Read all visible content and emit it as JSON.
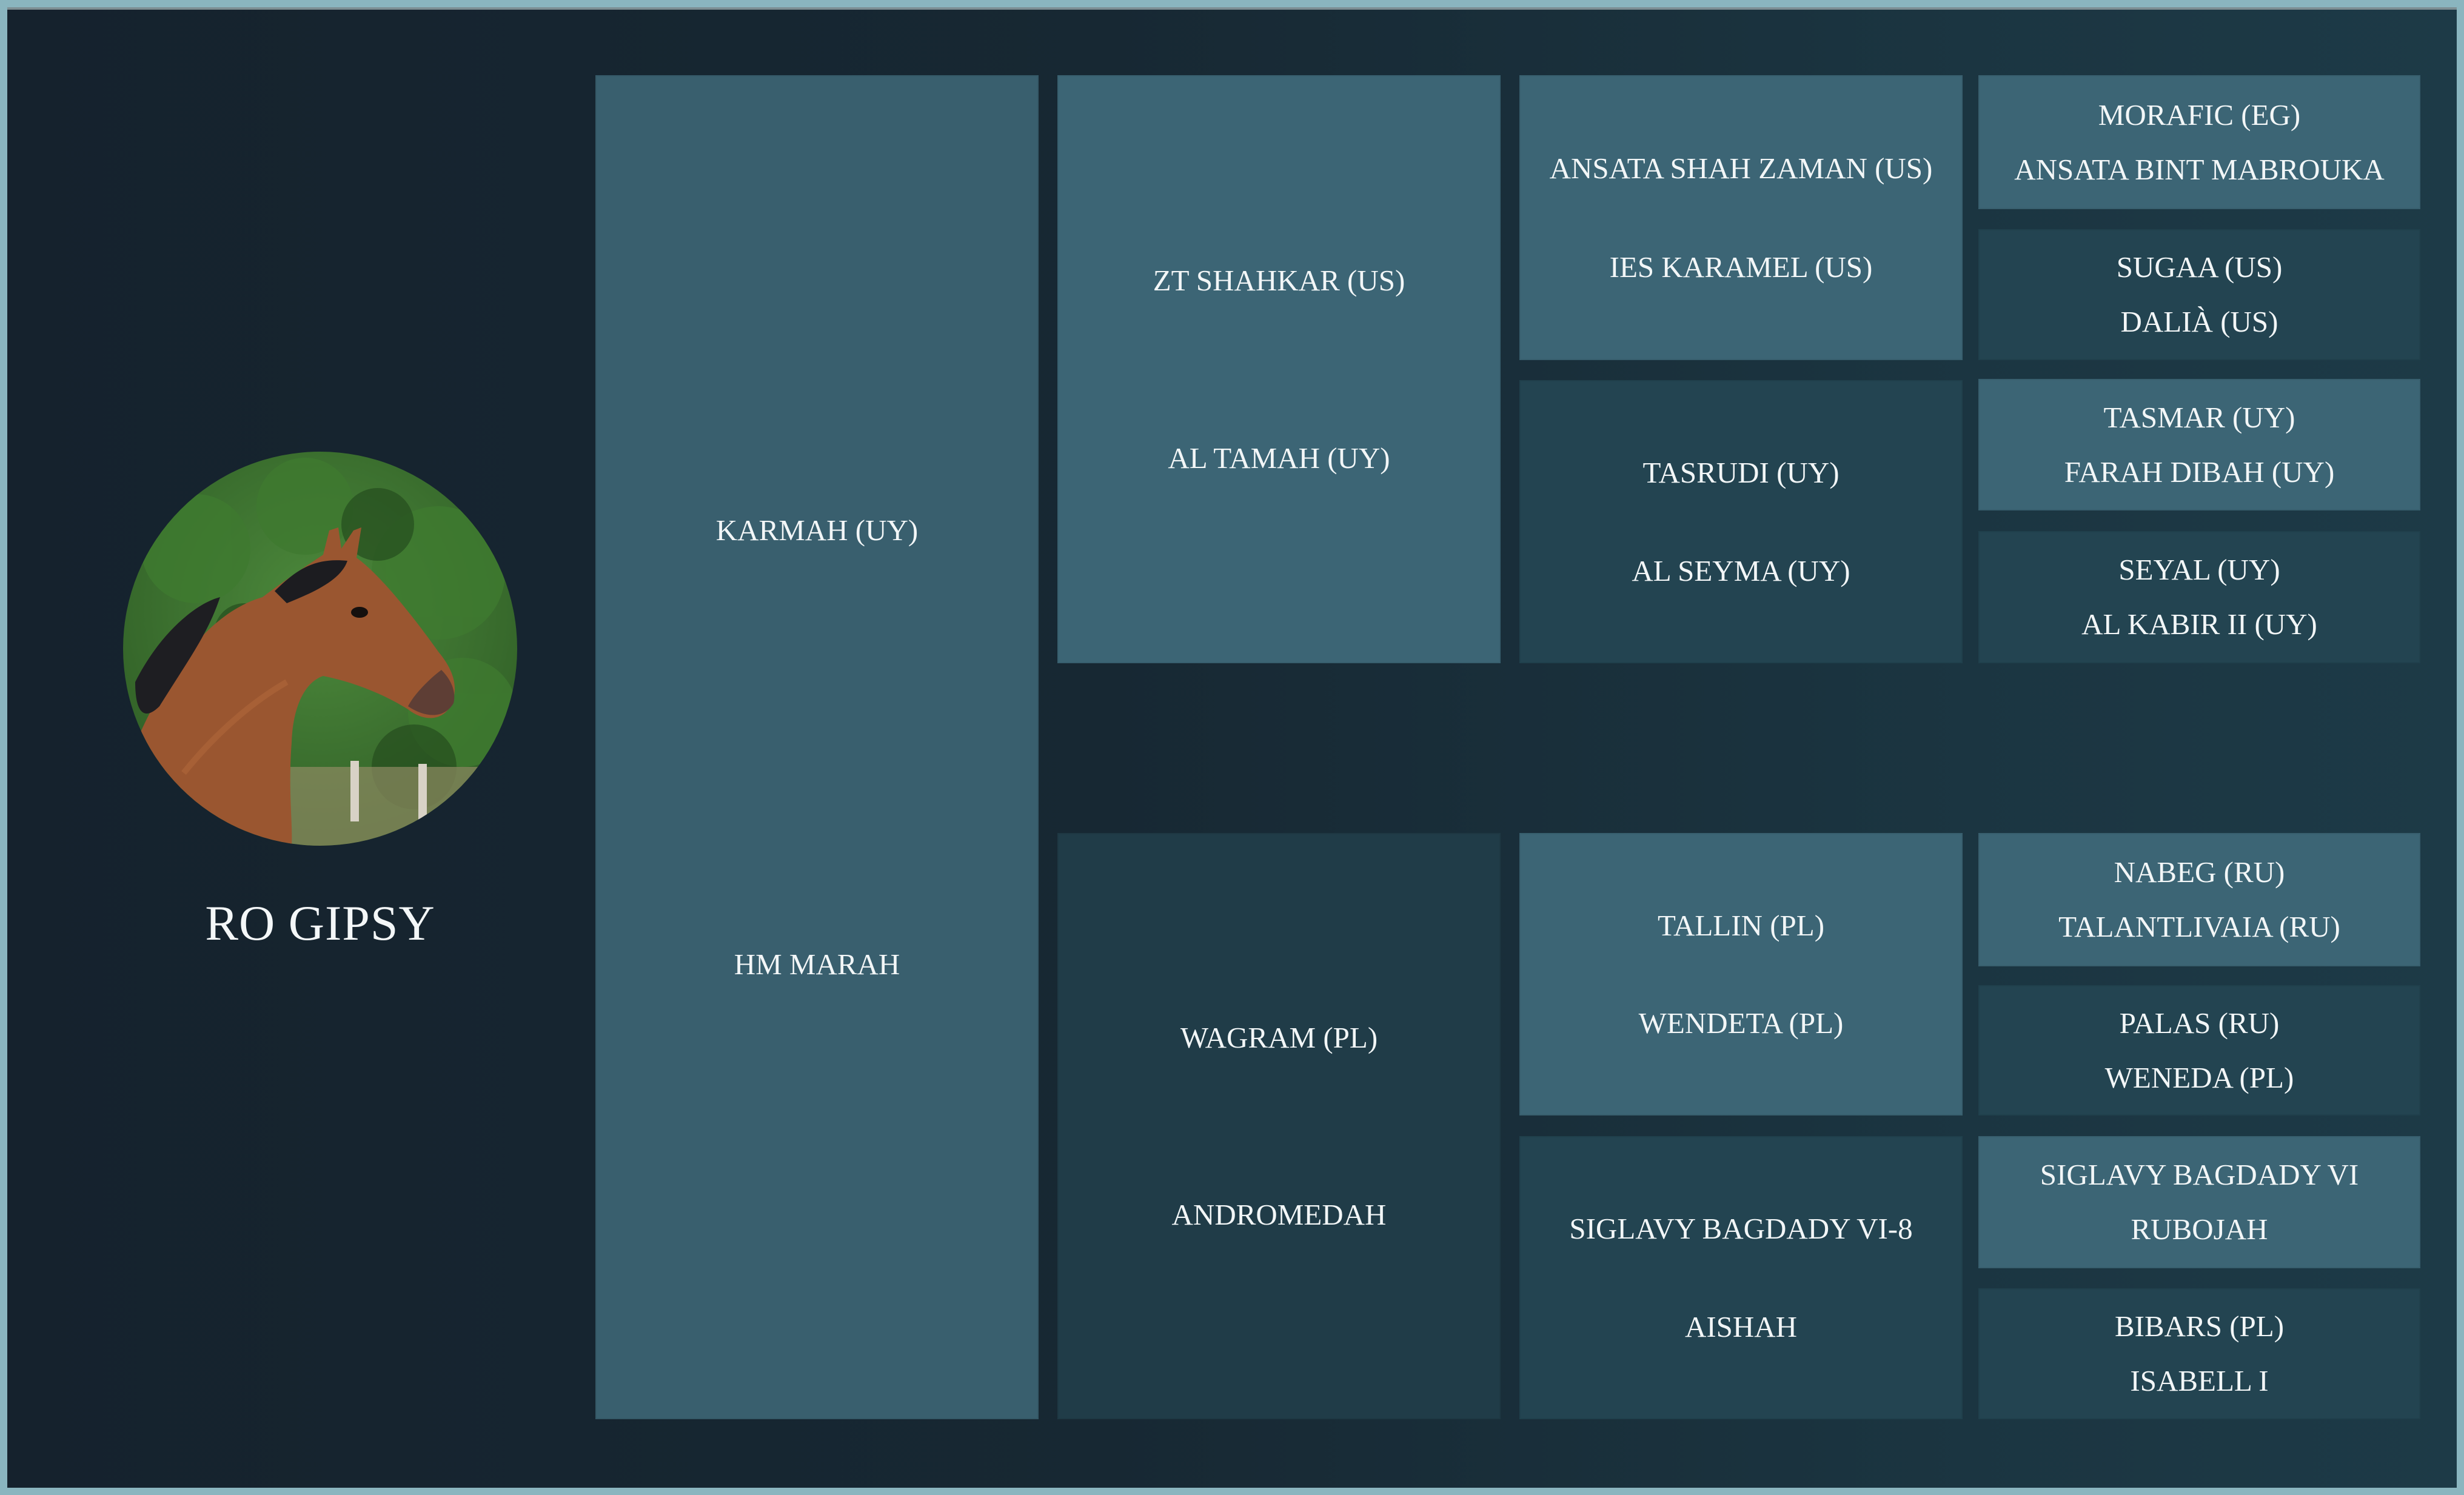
{
  "horse": {
    "name": "RO GIPSY",
    "photo_icon": "horse-portrait-photo"
  },
  "pedigree": {
    "parents": {
      "sire": "KARMAH (UY)",
      "dam": "HM MARAH"
    },
    "grandparents": [
      {
        "sire": "ZT SHAHKAR (US)",
        "dam": "AL TAMAH (UY)"
      },
      {
        "sire": "WAGRAM (PL)",
        "dam": "ANDROMEDAH"
      }
    ],
    "great_grandparents": [
      {
        "sire": "ANSATA SHAH ZAMAN (US)",
        "dam": "IES KARAMEL (US)"
      },
      {
        "sire": "TASRUDI (UY)",
        "dam": "AL SEYMA (UY)"
      },
      {
        "sire": "TALLIN (PL)",
        "dam": "WENDETA (PL)"
      },
      {
        "sire": "SIGLAVY BAGDADY VI-8",
        "dam": "AISHAH"
      }
    ],
    "great_great_grandparents": [
      {
        "sire": "MORAFIC (EG)",
        "dam": "ANSATA BINT MABROUKA"
      },
      {
        "sire": "SUGAA (US)",
        "dam": "DALIÀ (US)"
      },
      {
        "sire": "TASMAR (UY)",
        "dam": "FARAH DIBAH (UY)"
      },
      {
        "sire": "SEYAL (UY)",
        "dam": "AL KABIR II (UY)"
      },
      {
        "sire": "NABEG (RU)",
        "dam": "TALANTLIVAIA (RU)"
      },
      {
        "sire": "PALAS (RU)",
        "dam": "WENEDA (PL)"
      },
      {
        "sire": "SIGLAVY BAGDADY VI",
        "dam": "RUBOJAH"
      },
      {
        "sire": "BIBARS (PL)",
        "dam": "ISABELL I"
      }
    ]
  },
  "colors": {
    "border": "#8ab5bf",
    "background": "#16232e",
    "box_light": "#3c6575",
    "box_dark": "#234451",
    "text": "#f2f6f7"
  }
}
